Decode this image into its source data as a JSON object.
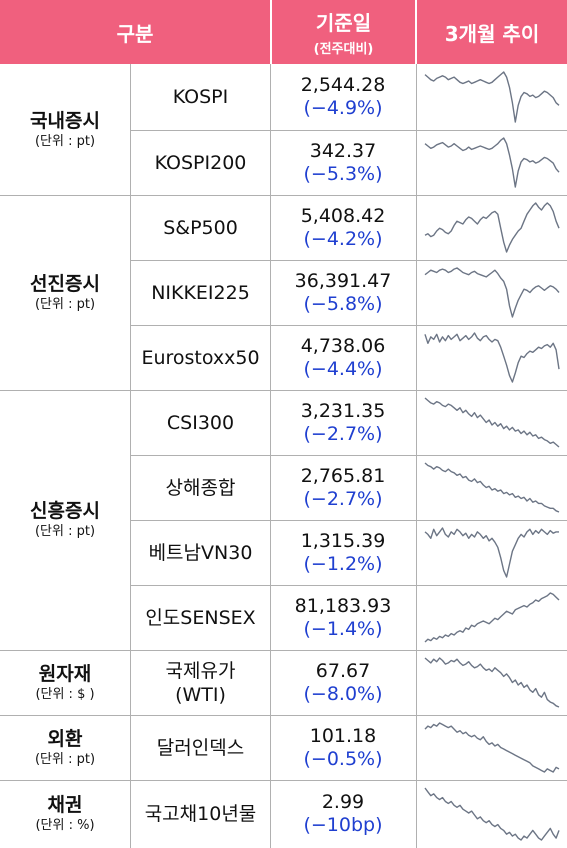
{
  "header": {
    "col1": "구분",
    "col2_title": "기준일",
    "col2_sub": "(전주대비)",
    "col3": "3개월 추이"
  },
  "colors": {
    "header_bg": "#f0607e",
    "change_text": "#1f3fd0",
    "sparkline": "#6c7585"
  },
  "groups": [
    {
      "name": "국내증시",
      "unit": "(단위 : pt)"
    },
    {
      "name": "선진증시",
      "unit": "(단위 : pt)"
    },
    {
      "name": "신흥증시",
      "unit": "(단위 : pt)"
    },
    {
      "name": "원자재",
      "unit": "(단위 : $ )"
    },
    {
      "name": "외환",
      "unit": "(단위 : pt)"
    },
    {
      "name": "채권",
      "unit": "(단위 : %)"
    }
  ],
  "rows": [
    {
      "item": "KOSPI",
      "value": "2,544.28",
      "change": "(−4.9%)",
      "trend": [
        62,
        60,
        58,
        57,
        59,
        60,
        61,
        60,
        58,
        59,
        60,
        58,
        56,
        55,
        56,
        57,
        55,
        56,
        57,
        58,
        57,
        56,
        55,
        56,
        58,
        60,
        62,
        64,
        60,
        52,
        40,
        25,
        38,
        45,
        48,
        47,
        45,
        46,
        44,
        45,
        47,
        49,
        48,
        46,
        44,
        40,
        38
      ]
    },
    {
      "item": "KOSPI200",
      "value": "342.37",
      "change": "(−5.3%)",
      "trend": [
        60,
        58,
        56,
        57,
        59,
        60,
        61,
        59,
        57,
        58,
        60,
        58,
        56,
        54,
        55,
        57,
        55,
        56,
        57,
        58,
        57,
        56,
        55,
        56,
        58,
        60,
        63,
        65,
        60,
        50,
        38,
        22,
        36,
        44,
        47,
        46,
        44,
        45,
        43,
        44,
        46,
        48,
        47,
        45,
        43,
        38,
        35
      ]
    },
    {
      "item": "S&P500",
      "value": "5,408.42",
      "change": "(−4.2%)",
      "trend": [
        45,
        46,
        44,
        45,
        48,
        50,
        49,
        47,
        46,
        48,
        52,
        55,
        54,
        53,
        56,
        58,
        57,
        55,
        53,
        56,
        58,
        57,
        59,
        61,
        62,
        60,
        50,
        40,
        33,
        38,
        42,
        45,
        48,
        50,
        55,
        60,
        63,
        66,
        68,
        65,
        63,
        66,
        68,
        66,
        62,
        55,
        50
      ]
    },
    {
      "item": "NIKKEI225",
      "value": "36,391.47",
      "change": "(−5.8%)",
      "trend": [
        58,
        60,
        62,
        61,
        60,
        62,
        63,
        62,
        60,
        61,
        63,
        64,
        62,
        60,
        59,
        58,
        60,
        61,
        59,
        58,
        57,
        56,
        58,
        60,
        62,
        59,
        55,
        52,
        45,
        30,
        20,
        28,
        35,
        40,
        45,
        44,
        42,
        45,
        47,
        48,
        46,
        44,
        46,
        48,
        47,
        45,
        42
      ]
    },
    {
      "item": "Eurostoxx50",
      "value": "4,738.06",
      "change": "(−4.4%)",
      "trend": [
        62,
        55,
        60,
        58,
        62,
        56,
        60,
        57,
        61,
        58,
        60,
        62,
        57,
        59,
        61,
        58,
        60,
        63,
        59,
        57,
        60,
        61,
        58,
        56,
        58,
        57,
        52,
        45,
        38,
        30,
        25,
        32,
        40,
        45,
        44,
        47,
        49,
        48,
        50,
        52,
        51,
        53,
        54,
        52,
        55,
        50,
        35
      ]
    },
    {
      "item": "CSI300",
      "value": "3,231.35",
      "change": "(−2.7%)",
      "trend": [
        70,
        68,
        66,
        65,
        67,
        66,
        64,
        63,
        65,
        64,
        62,
        60,
        62,
        58,
        60,
        57,
        55,
        58,
        54,
        56,
        53,
        50,
        52,
        48,
        50,
        47,
        49,
        45,
        47,
        44,
        46,
        43,
        44,
        41,
        43,
        40,
        42,
        39,
        40,
        37,
        38,
        36,
        35,
        33,
        34,
        32,
        30
      ]
    },
    {
      "item": "상해종합",
      "value": "2,765.81",
      "change": "(−2.7%)",
      "trend": [
        70,
        68,
        67,
        65,
        67,
        66,
        64,
        63,
        65,
        63,
        62,
        60,
        61,
        58,
        59,
        56,
        55,
        57,
        54,
        55,
        52,
        50,
        51,
        48,
        49,
        47,
        48,
        45,
        46,
        44,
        45,
        42,
        43,
        41,
        42,
        39,
        41,
        38,
        39,
        37,
        37,
        35,
        34,
        33,
        33,
        31,
        30
      ]
    },
    {
      "item": "베트남VN30",
      "value": "1,315.39",
      "change": "(−1.2%)",
      "trend": [
        60,
        58,
        55,
        62,
        57,
        60,
        63,
        58,
        56,
        60,
        58,
        62,
        60,
        57,
        59,
        55,
        58,
        56,
        60,
        58,
        55,
        57,
        53,
        55,
        52,
        48,
        40,
        30,
        25,
        35,
        45,
        50,
        55,
        58,
        56,
        60,
        62,
        58,
        61,
        59,
        62,
        60,
        58,
        61,
        59,
        60,
        60
      ]
    },
    {
      "item": "인도SENSEX",
      "value": "81,183.93",
      "change": "(−1.4%)",
      "trend": [
        30,
        32,
        31,
        33,
        32,
        34,
        33,
        35,
        34,
        36,
        35,
        37,
        38,
        37,
        40,
        39,
        42,
        41,
        43,
        44,
        45,
        44,
        43,
        45,
        47,
        46,
        48,
        50,
        52,
        51,
        50,
        53,
        54,
        55,
        56,
        55,
        57,
        58,
        60,
        59,
        61,
        62,
        63,
        65,
        64,
        62,
        60
      ]
    },
    {
      "item": "국제유가\n(WTI)",
      "value": "67.67",
      "change": "(−8.0%)",
      "trend": [
        70,
        68,
        66,
        69,
        67,
        70,
        68,
        65,
        66,
        68,
        67,
        69,
        66,
        64,
        65,
        67,
        64,
        62,
        63,
        65,
        62,
        60,
        61,
        59,
        62,
        60,
        58,
        55,
        57,
        54,
        50,
        52,
        48,
        50,
        46,
        48,
        44,
        42,
        45,
        40,
        38,
        42,
        36,
        34,
        33,
        31,
        30
      ]
    },
    {
      "item": "달러인덱스",
      "value": "101.18",
      "change": "(−0.5%)",
      "trend": [
        60,
        62,
        61,
        63,
        62,
        64,
        63,
        62,
        61,
        62,
        60,
        58,
        59,
        57,
        58,
        56,
        55,
        56,
        54,
        53,
        55,
        52,
        50,
        51,
        49,
        50,
        48,
        47,
        46,
        45,
        44,
        43,
        42,
        41,
        40,
        39,
        38,
        36,
        35,
        34,
        33,
        32,
        34,
        33,
        32,
        35,
        34
      ]
    },
    {
      "item": "국고채10년물",
      "value": "2.99",
      "change": "(−10bp)",
      "trend": [
        62,
        60,
        58,
        59,
        57,
        56,
        57,
        55,
        54,
        55,
        53,
        52,
        53,
        51,
        50,
        49,
        50,
        48,
        46,
        47,
        45,
        44,
        45,
        43,
        42,
        43,
        41,
        40,
        38,
        39,
        37,
        38,
        36,
        35,
        37,
        36,
        38,
        40,
        38,
        36,
        35,
        37,
        39,
        41,
        38,
        36,
        40
      ]
    }
  ]
}
